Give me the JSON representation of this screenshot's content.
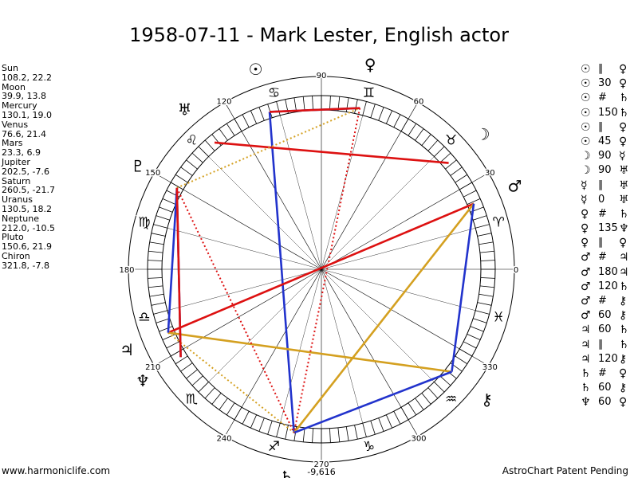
{
  "title": "1958-07-11 - Mark Lester, English actor",
  "planets": [
    {
      "name": "Sun",
      "glyph": "☉",
      "lon": 108.2,
      "lat": 22.2,
      "line1": "Sun",
      "line2": "108.2, 22.2"
    },
    {
      "name": "Moon",
      "glyph": "☽",
      "lon": 39.9,
      "lat": 13.8,
      "line1": "Moon",
      "line2": "39.9, 13.8"
    },
    {
      "name": "Mercury",
      "glyph": "☿",
      "lon": 130.1,
      "lat": 19.0,
      "line1": "Mercury",
      "line2": "130.1, 19.0"
    },
    {
      "name": "Venus",
      "glyph": "♀",
      "lon": 76.6,
      "lat": 21.4,
      "line1": "Venus",
      "line2": "76.6, 21.4"
    },
    {
      "name": "Mars",
      "glyph": "♂",
      "lon": 23.3,
      "lat": 6.9,
      "line1": "Mars",
      "line2": "23.3, 6.9"
    },
    {
      "name": "Jupiter",
      "glyph": "♃",
      "lon": 202.5,
      "lat": -7.6,
      "line1": "Jupiter",
      "line2": "202.5, -7.6"
    },
    {
      "name": "Saturn",
      "glyph": "♄",
      "lon": 260.5,
      "lat": -21.7,
      "line1": "Saturn",
      "line2": "260.5, -21.7"
    },
    {
      "name": "Uranus",
      "glyph": "♅",
      "lon": 130.5,
      "lat": 18.2,
      "line1": "Uranus",
      "line2": "130.5, 18.2"
    },
    {
      "name": "Neptune",
      "glyph": "♆",
      "lon": 212.0,
      "lat": -10.5,
      "line1": "Neptune",
      "line2": "212.0, -10.5"
    },
    {
      "name": "Pluto",
      "glyph": "♇",
      "lon": 150.6,
      "lat": 21.9,
      "line1": "Pluto",
      "line2": "150.6, 21.9"
    },
    {
      "name": "Chiron",
      "glyph": "⚷",
      "lon": 321.8,
      "lat": -7.8,
      "line1": "Chiron",
      "line2": "321.8, -7.8"
    }
  ],
  "aspects": [
    {
      "p1": "☉",
      "sym": "∥",
      "p2": "♀"
    },
    {
      "p1": "☉",
      "sym": "30",
      "p2": "♀"
    },
    {
      "p1": "☉",
      "sym": "#",
      "p2": "♄"
    },
    {
      "p1": "☉",
      "sym": "150",
      "p2": "♄"
    },
    {
      "p1": "☉",
      "sym": "∥",
      "p2": "♀"
    },
    {
      "p1": "☉",
      "sym": "45",
      "p2": "♀"
    },
    {
      "p1": "☽",
      "sym": "90",
      "p2": "☿"
    },
    {
      "p1": "☽",
      "sym": "90",
      "p2": "♅"
    },
    {
      "p1": "☿",
      "sym": "∥",
      "p2": "♅"
    },
    {
      "p1": "☿",
      "sym": "0",
      "p2": "♅"
    },
    {
      "p1": "♀",
      "sym": "#",
      "p2": "♄"
    },
    {
      "p1": "♀",
      "sym": "135",
      "p2": "♆"
    },
    {
      "p1": "♀",
      "sym": "∥",
      "p2": "♀"
    },
    {
      "p1": "♂",
      "sym": "#",
      "p2": "♃"
    },
    {
      "p1": "♂",
      "sym": "180",
      "p2": "♃"
    },
    {
      "p1": "♂",
      "sym": "120",
      "p2": "♄"
    },
    {
      "p1": "♂",
      "sym": "#",
      "p2": "⚷"
    },
    {
      "p1": "♂",
      "sym": "60",
      "p2": "⚷"
    },
    {
      "p1": "♃",
      "sym": "60",
      "p2": "♄"
    },
    {
      "p1": "♃",
      "sym": "∥",
      "p2": "♄"
    },
    {
      "p1": "♃",
      "sym": "120",
      "p2": "⚷"
    },
    {
      "p1": "♄",
      "sym": "#",
      "p2": "♀"
    },
    {
      "p1": "♄",
      "sym": "60",
      "p2": "⚷"
    },
    {
      "p1": "♆",
      "sym": "60",
      "p2": "♀"
    }
  ],
  "degree_labels": [
    {
      "deg": 0,
      "text": "0"
    },
    {
      "deg": 30,
      "text": "30"
    },
    {
      "deg": 60,
      "text": "60"
    },
    {
      "deg": 90,
      "text": "90"
    },
    {
      "deg": 120,
      "text": "120"
    },
    {
      "deg": 150,
      "text": "150"
    },
    {
      "deg": 180,
      "text": "180"
    },
    {
      "deg": 210,
      "text": "210"
    },
    {
      "deg": 240,
      "text": "240"
    },
    {
      "deg": 270,
      "text": "270"
    },
    {
      "deg": 300,
      "text": "300"
    },
    {
      "deg": 330,
      "text": "330"
    }
  ],
  "zodiac": [
    {
      "sign": "Aries",
      "glyph": "♈",
      "deg": 15
    },
    {
      "sign": "Taurus",
      "glyph": "♉",
      "deg": 45
    },
    {
      "sign": "Gemini",
      "glyph": "♊",
      "deg": 75
    },
    {
      "sign": "Cancer",
      "glyph": "♋",
      "deg": 105
    },
    {
      "sign": "Leo",
      "glyph": "♌",
      "deg": 135
    },
    {
      "sign": "Virgo",
      "glyph": "♍",
      "deg": 165
    },
    {
      "sign": "Libra",
      "glyph": "♎",
      "deg": 195
    },
    {
      "sign": "Scorpio",
      "glyph": "♏",
      "deg": 225
    },
    {
      "sign": "Sagittarius",
      "glyph": "♐",
      "deg": 255
    },
    {
      "sign": "Capricorn",
      "glyph": "♑",
      "deg": 285
    },
    {
      "sign": "Aquarius",
      "glyph": "♒",
      "deg": 315
    },
    {
      "sign": "Pisces",
      "glyph": "♓",
      "deg": 345
    }
  ],
  "bottom_value": "-9,616",
  "aspect_lines": [
    {
      "a": "Sun",
      "b": "Venus",
      "color": "#2233cc",
      "style": "solid"
    },
    {
      "a": "Sun",
      "b": "Saturn",
      "color": "#2233cc",
      "style": "solid"
    },
    {
      "a": "Moon",
      "b": "Mercury",
      "color": "#dd1111",
      "style": "solid"
    },
    {
      "a": "Mars",
      "b": "Jupiter",
      "color": "#dd1111",
      "style": "solid"
    },
    {
      "a": "Mars",
      "b": "Jupiter",
      "color": "#dd1111",
      "style": "dotted"
    },
    {
      "a": "Mars",
      "b": "Saturn",
      "color": "#d4a020",
      "style": "solid"
    },
    {
      "a": "Mars",
      "b": "Chiron",
      "color": "#2233cc",
      "style": "solid"
    },
    {
      "a": "Jupiter",
      "b": "Saturn",
      "color": "#d4a020",
      "style": "dotted"
    },
    {
      "a": "Jupiter",
      "b": "Chiron",
      "color": "#d4a020",
      "style": "solid"
    },
    {
      "a": "Saturn",
      "b": "Chiron",
      "color": "#2233cc",
      "style": "solid"
    },
    {
      "a": "Neptune",
      "b": "Pluto",
      "color": "#2233cc",
      "style": "solid"
    },
    {
      "a": "Pluto",
      "b": "Venus",
      "color": "#d4a020",
      "style": "dotted"
    },
    {
      "a": "Pluto",
      "b": "Jupiter",
      "color": "#2233cc",
      "style": "solid"
    },
    {
      "a": "Venus",
      "b": "Saturn",
      "color": "#dd1111",
      "style": "dotted"
    },
    {
      "a": "Neptune",
      "b": "Pluto",
      "color": "#dd1111",
      "style": "solid"
    },
    {
      "a": "Sun",
      "b": "Venus",
      "color": "#dd1111",
      "style": "solid"
    },
    {
      "a": "Pluto",
      "b": "Saturn",
      "color": "#dd1111",
      "style": "dotted"
    }
  ],
  "footer_left": "www.harmoniclife.com",
  "footer_right": "AstroChart Patent Pending"
}
